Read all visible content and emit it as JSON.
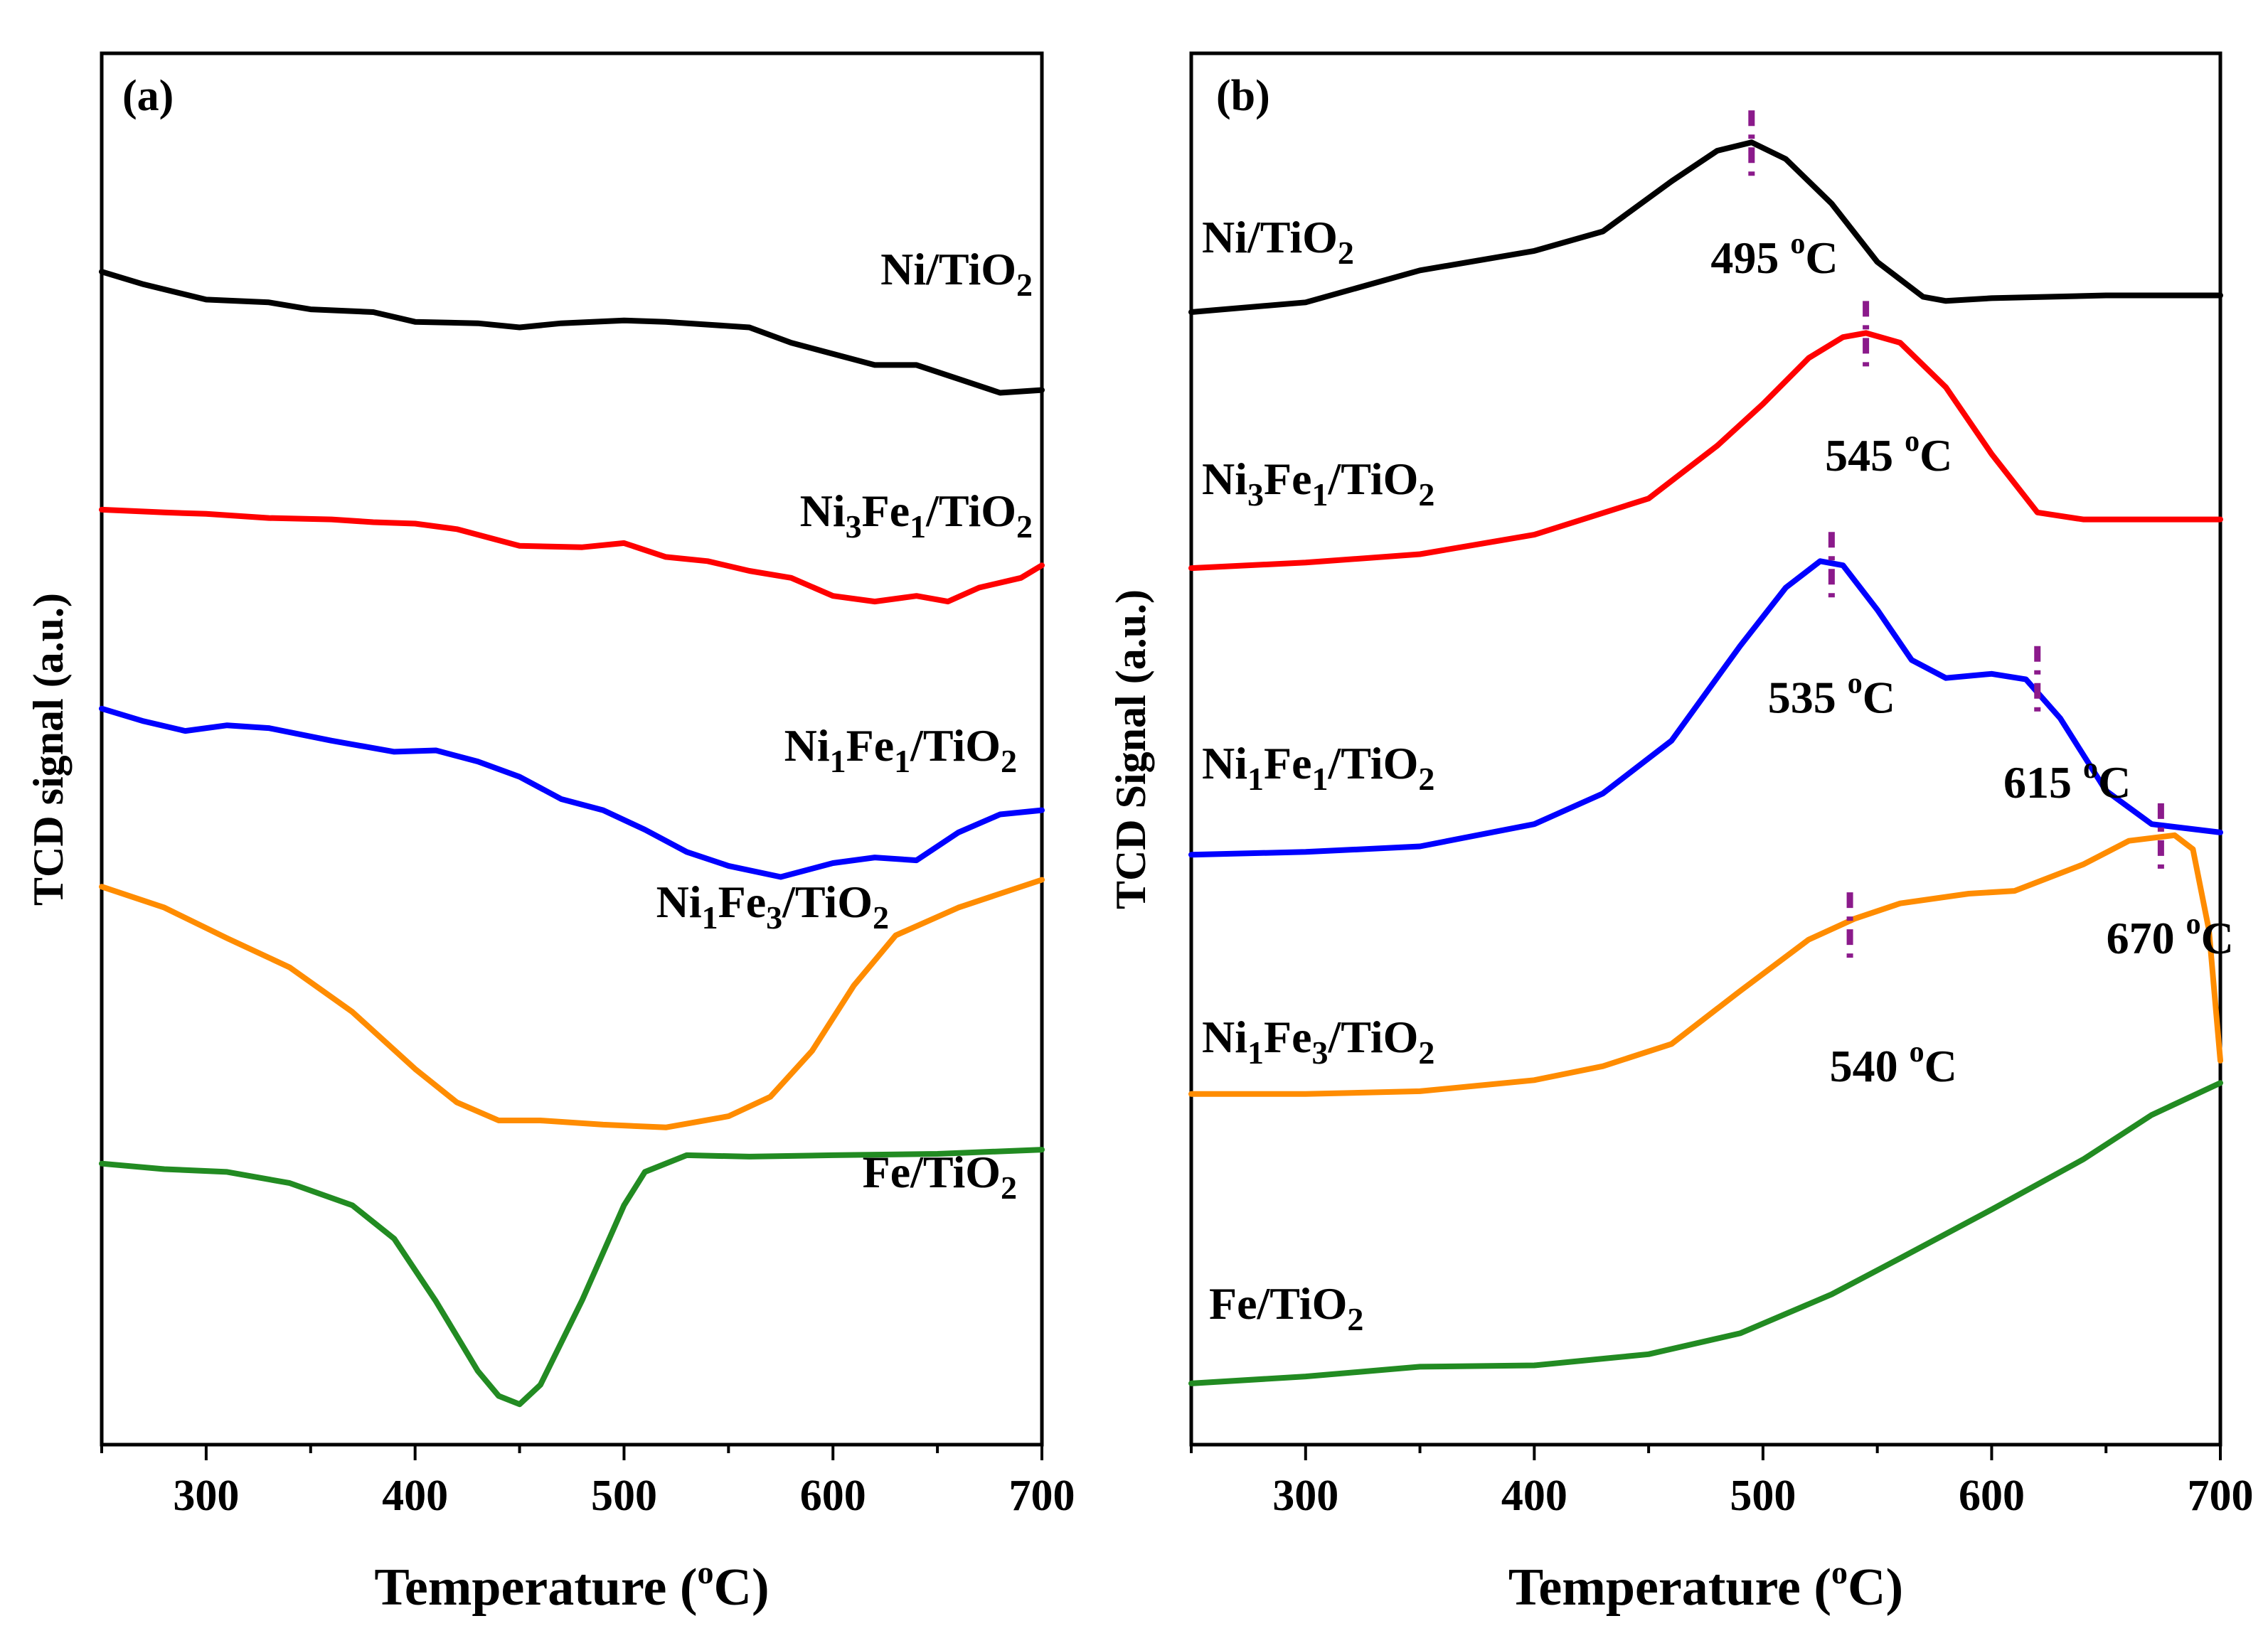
{
  "chart_data": [
    {
      "type": "line",
      "panel": "(a)",
      "xlabel": "Temperature (",
      "xlabel_sup": "o",
      "xlabel_end": "C)",
      "ylabel": "TCD signal (a.u.)",
      "xlim": [
        250,
        700
      ],
      "ylim": [
        0,
        100
      ],
      "x_ticks": [
        300,
        400,
        500,
        600,
        700
      ],
      "x_tick_labels": [
        "300",
        "400",
        "500",
        "600",
        "700"
      ],
      "series": [
        {
          "name": "Ni/TiO2",
          "color": "#000000",
          "label_parts": [
            [
              "Ni/TiO",
              ""
            ],
            [
              "2",
              "sub"
            ]
          ],
          "points": [
            [
              250,
              84.3
            ],
            [
              270,
              83.4
            ],
            [
              300,
              82.3
            ],
            [
              330,
              82.1
            ],
            [
              350,
              81.6
            ],
            [
              380,
              81.4
            ],
            [
              400,
              80.7
            ],
            [
              430,
              80.6
            ],
            [
              450,
              80.3
            ],
            [
              470,
              80.6
            ],
            [
              500,
              80.8
            ],
            [
              520,
              80.7
            ],
            [
              540,
              80.5
            ],
            [
              560,
              80.3
            ],
            [
              580,
              79.2
            ],
            [
              600,
              78.4
            ],
            [
              620,
              77.6
            ],
            [
              640,
              77.6
            ],
            [
              660,
              76.6
            ],
            [
              680,
              75.6
            ],
            [
              700,
              75.8
            ]
          ]
        },
        {
          "name": "Ni3Fe1/TiO2",
          "color": "#FF0000",
          "label_parts": [
            [
              "Ni",
              ""
            ],
            [
              "3",
              "sub"
            ],
            [
              "Fe",
              ""
            ],
            [
              "1",
              "sub"
            ],
            [
              "/TiO",
              ""
            ],
            [
              "2",
              "sub"
            ]
          ],
          "points": [
            [
              250,
              67.2
            ],
            [
              280,
              67.0
            ],
            [
              300,
              66.9
            ],
            [
              330,
              66.6
            ],
            [
              360,
              66.5
            ],
            [
              380,
              66.3
            ],
            [
              400,
              66.2
            ],
            [
              420,
              65.8
            ],
            [
              450,
              64.6
            ],
            [
              480,
              64.5
            ],
            [
              500,
              64.8
            ],
            [
              520,
              63.8
            ],
            [
              540,
              63.5
            ],
            [
              560,
              62.8
            ],
            [
              580,
              62.3
            ],
            [
              600,
              61.0
            ],
            [
              620,
              60.6
            ],
            [
              640,
              61.0
            ],
            [
              655,
              60.6
            ],
            [
              670,
              61.6
            ],
            [
              690,
              62.3
            ],
            [
              700,
              63.2
            ]
          ]
        },
        {
          "name": "Ni1Fe1/TiO2",
          "color": "#0000FF",
          "label_parts": [
            [
              "Ni",
              ""
            ],
            [
              "1",
              "sub"
            ],
            [
              "Fe",
              ""
            ],
            [
              "1",
              "sub"
            ],
            [
              "/TiO",
              ""
            ],
            [
              "2",
              "sub"
            ]
          ],
          "points": [
            [
              250,
              52.9
            ],
            [
              270,
              52.0
            ],
            [
              290,
              51.3
            ],
            [
              310,
              51.7
            ],
            [
              330,
              51.5
            ],
            [
              360,
              50.6
            ],
            [
              390,
              49.8
            ],
            [
              410,
              49.9
            ],
            [
              430,
              49.1
            ],
            [
              450,
              48.0
            ],
            [
              470,
              46.4
            ],
            [
              490,
              45.6
            ],
            [
              510,
              44.2
            ],
            [
              530,
              42.6
            ],
            [
              550,
              41.6
            ],
            [
              575,
              40.8
            ],
            [
              600,
              41.8
            ],
            [
              620,
              42.2
            ],
            [
              640,
              42.0
            ],
            [
              660,
              44.0
            ],
            [
              680,
              45.3
            ],
            [
              700,
              45.6
            ]
          ]
        },
        {
          "name": "Ni1Fe3/TiO2",
          "color": "#FF8C00",
          "label_parts": [
            [
              "Ni",
              ""
            ],
            [
              "1",
              "sub"
            ],
            [
              "Fe",
              ""
            ],
            [
              "3",
              "sub"
            ],
            [
              "/TiO",
              ""
            ],
            [
              "2",
              "sub"
            ]
          ],
          "points": [
            [
              250,
              40.1
            ],
            [
              280,
              38.6
            ],
            [
              310,
              36.4
            ],
            [
              340,
              34.3
            ],
            [
              370,
              31.1
            ],
            [
              400,
              27.0
            ],
            [
              420,
              24.6
            ],
            [
              440,
              23.3
            ],
            [
              460,
              23.3
            ],
            [
              490,
              23.0
            ],
            [
              520,
              22.8
            ],
            [
              550,
              23.6
            ],
            [
              570,
              25.0
            ],
            [
              590,
              28.3
            ],
            [
              610,
              33.0
            ],
            [
              630,
              36.6
            ],
            [
              660,
              38.6
            ],
            [
              680,
              39.6
            ],
            [
              700,
              40.6
            ]
          ]
        },
        {
          "name": "Fe/TiO2",
          "color": "#228B22",
          "label_parts": [
            [
              "Fe/TiO",
              ""
            ],
            [
              "2",
              "sub"
            ]
          ],
          "points": [
            [
              250,
              20.2
            ],
            [
              280,
              19.8
            ],
            [
              310,
              19.6
            ],
            [
              340,
              18.8
            ],
            [
              370,
              17.2
            ],
            [
              390,
              14.8
            ],
            [
              410,
              10.3
            ],
            [
              430,
              5.3
            ],
            [
              440,
              3.5
            ],
            [
              450,
              2.9
            ],
            [
              460,
              4.3
            ],
            [
              480,
              10.4
            ],
            [
              500,
              17.2
            ],
            [
              510,
              19.6
            ],
            [
              530,
              20.8
            ],
            [
              560,
              20.7
            ],
            [
              600,
              20.8
            ],
            [
              650,
              20.9
            ],
            [
              700,
              21.2
            ]
          ]
        }
      ]
    },
    {
      "type": "line",
      "panel": "(b)",
      "xlabel": "Temperature (",
      "xlabel_sup": "o",
      "xlabel_end": "C)",
      "ylabel": "TCD Signal (a.u.)",
      "xlim": [
        250,
        700
      ],
      "ylim": [
        0,
        100
      ],
      "x_ticks": [
        300,
        400,
        500,
        600,
        700
      ],
      "x_tick_labels": [
        "300",
        "400",
        "500",
        "600",
        "700"
      ],
      "series": [
        {
          "name": "Ni/TiO2",
          "color": "#000000",
          "label_parts": [
            [
              "Ni/TiO",
              ""
            ],
            [
              "2",
              "sub"
            ]
          ],
          "points": [
            [
              250,
              81.4
            ],
            [
              300,
              82.1
            ],
            [
              350,
              84.4
            ],
            [
              400,
              85.8
            ],
            [
              430,
              87.2
            ],
            [
              460,
              90.8
            ],
            [
              480,
              93.0
            ],
            [
              495,
              93.6
            ],
            [
              510,
              92.4
            ],
            [
              530,
              89.2
            ],
            [
              550,
              85.0
            ],
            [
              570,
              82.5
            ],
            [
              580,
              82.2
            ],
            [
              600,
              82.4
            ],
            [
              650,
              82.6
            ],
            [
              700,
              82.6
            ]
          ]
        },
        {
          "name": "Ni3Fe1/TiO2",
          "color": "#FF0000",
          "label_parts": [
            [
              "Ni",
              ""
            ],
            [
              "3",
              "sub"
            ],
            [
              "Fe",
              ""
            ],
            [
              "1",
              "sub"
            ],
            [
              "/TiO",
              ""
            ],
            [
              "2",
              "sub"
            ]
          ],
          "points": [
            [
              250,
              63.0
            ],
            [
              300,
              63.4
            ],
            [
              350,
              64.0
            ],
            [
              400,
              65.4
            ],
            [
              450,
              68.0
            ],
            [
              480,
              71.8
            ],
            [
              500,
              74.8
            ],
            [
              520,
              78.1
            ],
            [
              535,
              79.6
            ],
            [
              545,
              79.9
            ],
            [
              560,
              79.2
            ],
            [
              580,
              76.0
            ],
            [
              600,
              71.2
            ],
            [
              620,
              67.0
            ],
            [
              640,
              66.5
            ],
            [
              700,
              66.5
            ]
          ]
        },
        {
          "name": "Ni1Fe1/TiO2",
          "color": "#0000FF",
          "label_parts": [
            [
              "Ni",
              ""
            ],
            [
              "1",
              "sub"
            ],
            [
              "Fe",
              ""
            ],
            [
              "1",
              "sub"
            ],
            [
              "/TiO",
              ""
            ],
            [
              "2",
              "sub"
            ]
          ],
          "points": [
            [
              250,
              42.4
            ],
            [
              300,
              42.6
            ],
            [
              350,
              43.0
            ],
            [
              400,
              44.6
            ],
            [
              430,
              46.8
            ],
            [
              460,
              50.6
            ],
            [
              490,
              57.4
            ],
            [
              510,
              61.6
            ],
            [
              525,
              63.5
            ],
            [
              535,
              63.2
            ],
            [
              550,
              60.0
            ],
            [
              565,
              56.4
            ],
            [
              580,
              55.1
            ],
            [
              600,
              55.4
            ],
            [
              615,
              55.0
            ],
            [
              630,
              52.2
            ],
            [
              650,
              47.0
            ],
            [
              670,
              44.6
            ],
            [
              700,
              44.0
            ]
          ]
        },
        {
          "name": "Ni1Fe3/TiO2",
          "color": "#FF8C00",
          "label_parts": [
            [
              "Ni",
              ""
            ],
            [
              "1",
              "sub"
            ],
            [
              "Fe",
              ""
            ],
            [
              "3",
              "sub"
            ],
            [
              "/TiO",
              ""
            ],
            [
              "2",
              "sub"
            ]
          ],
          "points": [
            [
              250,
              25.2
            ],
            [
              300,
              25.2
            ],
            [
              350,
              25.4
            ],
            [
              400,
              26.2
            ],
            [
              430,
              27.2
            ],
            [
              460,
              28.8
            ],
            [
              490,
              32.6
            ],
            [
              520,
              36.3
            ],
            [
              540,
              37.8
            ],
            [
              560,
              38.9
            ],
            [
              590,
              39.6
            ],
            [
              610,
              39.8
            ],
            [
              640,
              41.7
            ],
            [
              660,
              43.4
            ],
            [
              680,
              43.8
            ],
            [
              688,
              42.8
            ],
            [
              695,
              37.0
            ],
            [
              700,
              27.6
            ]
          ]
        },
        {
          "name": "Fe/TiO2",
          "color": "#228B22",
          "label_parts": [
            [
              "Fe/TiO",
              ""
            ],
            [
              "2",
              "sub"
            ]
          ],
          "points": [
            [
              250,
              4.4
            ],
            [
              300,
              4.9
            ],
            [
              350,
              5.6
            ],
            [
              400,
              5.7
            ],
            [
              450,
              6.5
            ],
            [
              490,
              8.0
            ],
            [
              530,
              10.8
            ],
            [
              560,
              13.4
            ],
            [
              600,
              16.9
            ],
            [
              640,
              20.5
            ],
            [
              670,
              23.7
            ],
            [
              700,
              26.0
            ]
          ]
        }
      ],
      "peak_annotations": [
        {
          "text": "495",
          "unit_sup": "o",
          "unit": "C",
          "x": 495,
          "mark_y": 93.6,
          "label_x": 505,
          "label_y": 84.2
        },
        {
          "text": "545",
          "unit_sup": "o",
          "unit": "C",
          "x": 545,
          "mark_y": 79.9,
          "label_x": 555,
          "label_y": 70.0
        },
        {
          "text": "535",
          "unit_sup": "o",
          "unit": "C",
          "x": 530,
          "mark_y": 63.3,
          "label_x": 530,
          "label_y": 52.6
        },
        {
          "text": "615",
          "unit_sup": "o",
          "unit": "C",
          "x": 620,
          "mark_y": 55.1,
          "label_x": 633,
          "label_y": 46.5
        },
        {
          "text": "540",
          "unit_sup": "o",
          "unit": "C",
          "x": 538,
          "mark_y": 37.4,
          "label_x": 557,
          "label_y": 26.1
        },
        {
          "text": "670",
          "unit_sup": "o",
          "unit": "C",
          "x": 674,
          "mark_y": 43.8,
          "label_x": 678,
          "label_y": 35.3
        }
      ]
    }
  ]
}
